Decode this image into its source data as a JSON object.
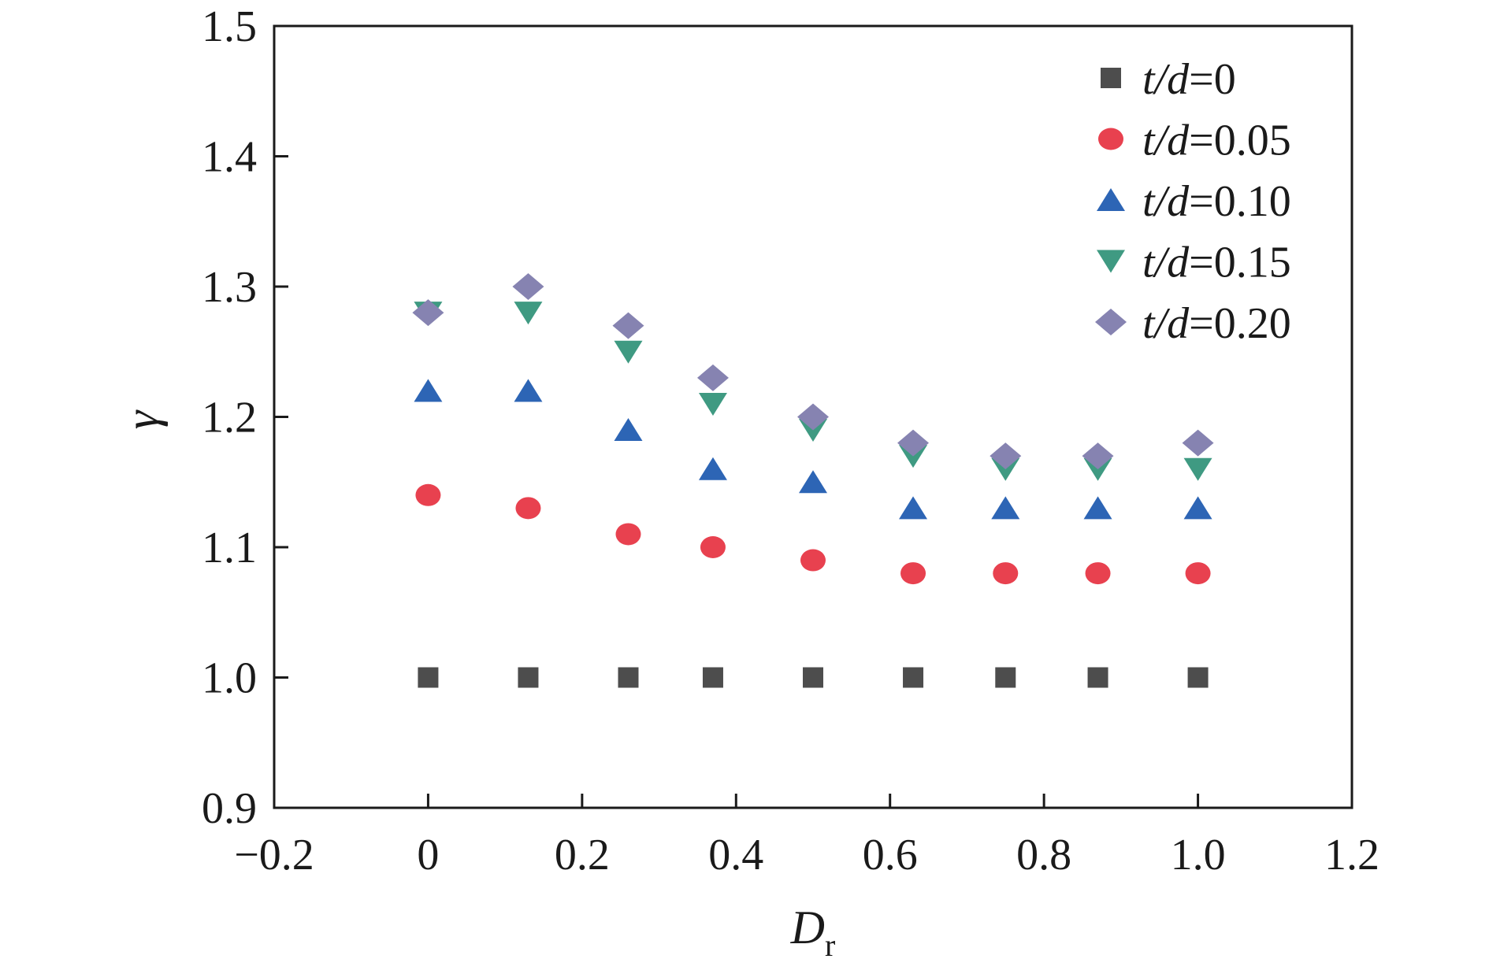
{
  "chart_data": {
    "type": "scatter",
    "xlabel": "D",
    "xlabel_sub": "r",
    "ylabel": "γ",
    "xlim": [
      -0.2,
      1.2
    ],
    "ylim": [
      0.9,
      1.5
    ],
    "x_ticks": [
      -0.2,
      0,
      0.2,
      0.4,
      0.6,
      0.8,
      1.0,
      1.2
    ],
    "x_tick_labels": [
      "−0.2",
      "0",
      "0.2",
      "0.4",
      "0.6",
      "0.8",
      "1.0",
      "1.2"
    ],
    "y_ticks": [
      0.9,
      1.0,
      1.1,
      1.2,
      1.3,
      1.4,
      1.5
    ],
    "y_tick_labels": [
      "0.9",
      "1.0",
      "1.1",
      "1.2",
      "1.3",
      "1.4",
      "1.5"
    ],
    "grid": false,
    "legend_position": "top-right",
    "x": [
      0,
      0.13,
      0.26,
      0.37,
      0.5,
      0.63,
      0.75,
      0.87,
      1.0
    ],
    "series": [
      {
        "name": "t/d=0",
        "name_italic": "t/d",
        "name_value": "=0",
        "marker": "square",
        "color": "#4d4d4d",
        "values": [
          1.0,
          1.0,
          1.0,
          1.0,
          1.0,
          1.0,
          1.0,
          1.0,
          1.0
        ]
      },
      {
        "name": "t/d=0.05",
        "name_italic": "t/d",
        "name_value": "=0.05",
        "marker": "circle",
        "color": "#e8414f",
        "values": [
          1.14,
          1.13,
          1.11,
          1.1,
          1.09,
          1.08,
          1.08,
          1.08,
          1.08
        ]
      },
      {
        "name": "t/d=0.10",
        "name_italic": "t/d",
        "name_value": "=0.10",
        "marker": "triangle-up",
        "color": "#2d65b5",
        "values": [
          1.22,
          1.22,
          1.19,
          1.16,
          1.15,
          1.13,
          1.13,
          1.13,
          1.13
        ]
      },
      {
        "name": "t/d=0.15",
        "name_italic": "t/d",
        "name_value": "=0.15",
        "marker": "triangle-down",
        "color": "#3f9a82",
        "values": [
          1.28,
          1.28,
          1.25,
          1.21,
          1.19,
          1.17,
          1.16,
          1.16,
          1.16
        ]
      },
      {
        "name": "t/d=0.20",
        "name_italic": "t/d",
        "name_value": "=0.20",
        "marker": "diamond",
        "color": "#8683b1",
        "values": [
          1.28,
          1.3,
          1.27,
          1.23,
          1.2,
          1.18,
          1.17,
          1.17,
          1.18
        ]
      }
    ]
  }
}
